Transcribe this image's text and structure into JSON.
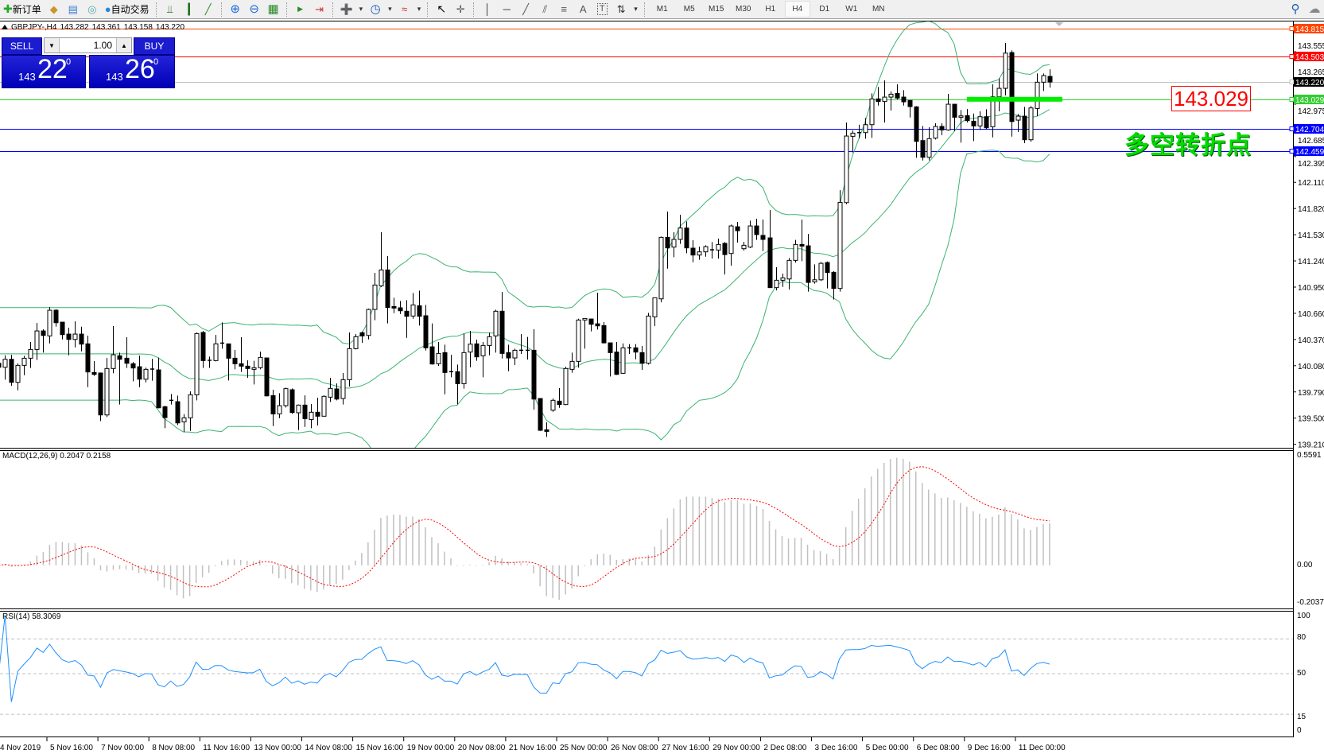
{
  "toolbar": {
    "new_order_label": "新订单",
    "auto_trading_label": "自动交易",
    "timeframes": [
      "M1",
      "M5",
      "M15",
      "M30",
      "H1",
      "H4",
      "D1",
      "W1",
      "MN"
    ],
    "active_timeframe": "H4"
  },
  "header": {
    "symbol": "GBPJPY-,H4",
    "open": "143.282",
    "high": "143.361",
    "low": "143.158",
    "close": "143.220"
  },
  "one_click": {
    "sell_label": "SELL",
    "buy_label": "BUY",
    "lot": "1.00",
    "sell_price": {
      "prefix": "143",
      "big": "22",
      "sup": "0"
    },
    "buy_price": {
      "prefix": "143",
      "big": "26",
      "sup": "0"
    }
  },
  "annotations": {
    "price_box": "143.029",
    "pivot_text": "多空转折点"
  },
  "indicators": {
    "macd_label": "MACD(12,26,9) 0.2047 0.2158",
    "rsi_label": "RSI(14) 58.3069",
    "macd_axis": [
      "0.5591",
      "0.00",
      "-0.2037"
    ],
    "rsi_axis": [
      "100",
      "80",
      "50",
      "15",
      "0"
    ],
    "rsi_levels": [
      80,
      50,
      15
    ]
  },
  "colors": {
    "bollinger": "#3cb371",
    "rsi": "#1e90ff",
    "macd_hist": "#c0c0c0",
    "macd_signal": "#ff0000",
    "pivot_segment": "#00ee00"
  },
  "chart_data": {
    "type": "candlestick",
    "symbol": "GBPJPY",
    "timeframe": "H4",
    "ylim": [
      139.15,
      143.87
    ],
    "price_ticks": [
      "143.555",
      "143.265",
      "142.975",
      "142.685",
      "142.395",
      "142.110",
      "141.820",
      "141.530",
      "141.240",
      "140.950",
      "140.660",
      "140.370",
      "140.080",
      "139.790",
      "139.500",
      "139.210"
    ],
    "time_labels": [
      "4 Nov 2019",
      "5 Nov 16:00",
      "7 Nov 00:00",
      "8 Nov 08:00",
      "11 Nov 16:00",
      "13 Nov 00:00",
      "14 Nov 08:00",
      "15 Nov 16:00",
      "19 Nov 00:00",
      "20 Nov 08:00",
      "21 Nov 16:00",
      "25 Nov 00:00",
      "26 Nov 08:00",
      "27 Nov 16:00",
      "29 Nov 00:00",
      "2 Dec 08:00",
      "3 Dec 16:00",
      "5 Dec 00:00",
      "6 Dec 08:00",
      "9 Dec 16:00",
      "11 Dec 00:00"
    ],
    "hlines": [
      {
        "price": 143.815,
        "label": "143.815",
        "color": "#ff4500",
        "label_bg": "#ff4500"
      },
      {
        "price": 143.503,
        "label": "143.503",
        "color": "#ff0000",
        "label_bg": "#ff0000"
      },
      {
        "price": 143.22,
        "label": "143.220",
        "color": "#c0c0c0",
        "label_bg": "#000000"
      },
      {
        "price": 143.029,
        "label": "143.029",
        "color": "#32cd32",
        "label_bg": "#32cd32"
      },
      {
        "price": 142.704,
        "label": "142.704",
        "color": "#0000ff",
        "label_bg": "#0000ff"
      },
      {
        "price": 142.459,
        "label": "142.459",
        "color": "#0000ff",
        "label_bg": "#0000ff"
      }
    ],
    "pivot_segment": {
      "price": 143.029,
      "from_bar": 152,
      "to_bar": 167
    },
    "candles_ohlc": [
      [
        140.107,
        140.137,
        140.019,
        140.063
      ],
      [
        140.063,
        140.195,
        139.925,
        140.151
      ],
      [
        140.151,
        140.201,
        139.858,
        139.896
      ],
      [
        139.896,
        140.107,
        139.808,
        140.084
      ],
      [
        140.084,
        140.19,
        139.975,
        140.163
      ],
      [
        140.163,
        140.342,
        140.055,
        140.26
      ],
      [
        140.26,
        140.553,
        140.143,
        140.465
      ],
      [
        140.465,
        140.483,
        140.225,
        140.415
      ],
      [
        140.41,
        140.729,
        140.327,
        140.694
      ],
      [
        140.694,
        140.706,
        140.512,
        140.556
      ],
      [
        140.562,
        140.562,
        140.371,
        140.424
      ],
      [
        140.43,
        140.501,
        140.195,
        140.371
      ],
      [
        140.371,
        140.571,
        140.283,
        140.43
      ],
      [
        140.43,
        140.512,
        140.239,
        140.319
      ],
      [
        140.322,
        140.413,
        139.843,
        140.011
      ],
      [
        140.005,
        140.131,
        139.967,
        139.984
      ],
      [
        139.999,
        140.005,
        139.468,
        139.535
      ],
      [
        139.535,
        140.166,
        139.512,
        140.049
      ],
      [
        140.049,
        140.518,
        139.996,
        140.201
      ],
      [
        140.19,
        140.225,
        139.65,
        140.151
      ],
      [
        140.163,
        140.395,
        140.055,
        140.107
      ],
      [
        140.102,
        140.122,
        139.908,
        140.055
      ],
      [
        140.069,
        140.192,
        139.843,
        139.931
      ],
      [
        139.931,
        140.058,
        139.896,
        140.04
      ],
      [
        140.043,
        140.157,
        139.914,
        140.031
      ],
      [
        140.034,
        140.17,
        139.609,
        139.614
      ],
      [
        139.626,
        139.638,
        139.388,
        139.506
      ],
      [
        139.697,
        139.767,
        139.65,
        139.688
      ],
      [
        139.682,
        139.749,
        139.424,
        139.447
      ],
      [
        139.459,
        139.544,
        139.344,
        139.503
      ],
      [
        139.503,
        139.796,
        139.359,
        139.758
      ],
      [
        139.758,
        140.448,
        139.697,
        140.436
      ],
      [
        140.448,
        140.465,
        140.055,
        140.137
      ],
      [
        140.137,
        140.181,
        140.055,
        140.14
      ],
      [
        140.137,
        140.421,
        140.128,
        140.322
      ],
      [
        140.33,
        140.559,
        140.269,
        140.319
      ],
      [
        140.322,
        140.322,
        139.917,
        140.163
      ],
      [
        140.163,
        140.254,
        140.04,
        140.102
      ],
      [
        140.102,
        140.395,
        140.011,
        140.075
      ],
      [
        140.075,
        140.14,
        139.946,
        140.049
      ],
      [
        140.04,
        140.134,
        139.873,
        140.058
      ],
      [
        140.058,
        140.236,
        140.04,
        140.172
      ],
      [
        140.166,
        140.17,
        139.74,
        139.746
      ],
      [
        139.749,
        139.814,
        139.412,
        139.547
      ],
      [
        139.547,
        139.776,
        139.5,
        139.638
      ],
      [
        139.638,
        139.837,
        139.617,
        139.826
      ],
      [
        139.814,
        139.829,
        139.547,
        139.562
      ],
      [
        139.559,
        139.65,
        139.368,
        139.644
      ],
      [
        139.644,
        139.752,
        139.403,
        139.494
      ],
      [
        139.485,
        139.656,
        139.388,
        139.565
      ],
      [
        139.565,
        139.726,
        139.418,
        139.521
      ],
      [
        139.521,
        139.752,
        139.521,
        139.741
      ],
      [
        139.732,
        139.946,
        139.679,
        139.829
      ],
      [
        139.823,
        139.884,
        139.697,
        139.711
      ],
      [
        139.717,
        139.999,
        139.65,
        139.925
      ],
      [
        139.925,
        140.448,
        139.849,
        140.269
      ],
      [
        140.269,
        140.43,
        140.26,
        140.401
      ],
      [
        140.445,
        140.46,
        140.333,
        140.41
      ],
      [
        140.415,
        140.712,
        140.371,
        140.703
      ],
      [
        140.703,
        141.108,
        140.583,
        140.973
      ],
      [
        140.964,
        141.557,
        140.952,
        141.14
      ],
      [
        141.14,
        141.293,
        140.548,
        140.724
      ],
      [
        140.735,
        140.832,
        140.662,
        140.718
      ],
      [
        140.721,
        140.797,
        140.653,
        140.688
      ],
      [
        140.683,
        140.806,
        140.389,
        140.627
      ],
      [
        140.63,
        140.885,
        140.6,
        140.753
      ],
      [
        140.744,
        140.911,
        140.524,
        140.627
      ],
      [
        140.633,
        140.753,
        140.248,
        140.278
      ],
      [
        140.289,
        140.548,
        140.093,
        140.099
      ],
      [
        140.102,
        140.342,
        140.078,
        140.216
      ],
      [
        140.225,
        140.313,
        139.764,
        140.005
      ],
      [
        140.014,
        140.201,
        139.952,
        140.005
      ],
      [
        140.014,
        140.093,
        139.653,
        139.881
      ],
      [
        139.881,
        140.436,
        139.826,
        140.225
      ],
      [
        140.231,
        140.465,
        140.063,
        140.319
      ],
      [
        140.322,
        140.369,
        140.134,
        140.178
      ],
      [
        140.19,
        140.342,
        139.952,
        140.304
      ],
      [
        140.304,
        140.445,
        140.195,
        140.401
      ],
      [
        140.41,
        140.7,
        140.225,
        140.683
      ],
      [
        140.683,
        140.897,
        140.16,
        140.216
      ],
      [
        140.225,
        140.313,
        140.019,
        140.166
      ],
      [
        140.166,
        140.269,
        140.087,
        140.251
      ],
      [
        140.251,
        140.43,
        140.21,
        140.239
      ],
      [
        140.251,
        140.398,
        140.148,
        140.239
      ],
      [
        140.251,
        140.483,
        139.594,
        139.711
      ],
      [
        139.717,
        139.717,
        139.359,
        139.365
      ],
      [
        139.371,
        139.453,
        139.292,
        139.353
      ],
      [
        139.588,
        139.717,
        139.57,
        139.697
      ],
      [
        139.688,
        139.832,
        139.614,
        139.65
      ],
      [
        139.65,
        140.069,
        139.644,
        140.049
      ],
      [
        140.04,
        140.225,
        140.002,
        140.128
      ],
      [
        140.128,
        140.6,
        140.058,
        140.586
      ],
      [
        140.586,
        140.603,
        140.269,
        140.603
      ],
      [
        140.597,
        140.6,
        140.46,
        140.539
      ],
      [
        140.544,
        140.888,
        140.48,
        140.521
      ],
      [
        140.524,
        140.562,
        140.327,
        140.333
      ],
      [
        140.333,
        140.333,
        139.961,
        140.225
      ],
      [
        140.231,
        140.342,
        139.978,
        139.984
      ],
      [
        139.996,
        140.327,
        139.99,
        140.278
      ],
      [
        140.275,
        140.319,
        140.21,
        140.278
      ],
      [
        140.278,
        140.319,
        140.151,
        140.231
      ],
      [
        140.225,
        140.298,
        140.034,
        140.107
      ],
      [
        140.107,
        140.665,
        140.093,
        140.63
      ],
      [
        140.621,
        140.832,
        140.518,
        140.832
      ],
      [
        140.82,
        141.51,
        140.782,
        141.501
      ],
      [
        141.501,
        141.786,
        141.155,
        141.384
      ],
      [
        141.393,
        141.557,
        141.281,
        141.478
      ],
      [
        141.478,
        141.751,
        141.428,
        141.604
      ],
      [
        141.604,
        141.677,
        141.325,
        141.384
      ],
      [
        141.381,
        141.469,
        141.225,
        141.305
      ],
      [
        141.305,
        141.398,
        141.252,
        141.34
      ],
      [
        141.34,
        141.413,
        141.287,
        141.398
      ],
      [
        141.36,
        141.448,
        141.266,
        141.363
      ],
      [
        141.36,
        141.487,
        141.266,
        141.422
      ],
      [
        141.434,
        141.448,
        141.09,
        141.31
      ],
      [
        141.322,
        141.642,
        141.187,
        141.627
      ],
      [
        141.618,
        141.671,
        141.443,
        141.574
      ],
      [
        141.375,
        141.451,
        141.355,
        141.413
      ],
      [
        141.393,
        141.686,
        141.381,
        141.627
      ],
      [
        141.627,
        141.707,
        141.472,
        141.531
      ],
      [
        141.522,
        141.698,
        141.349,
        141.478
      ],
      [
        141.495,
        141.803,
        140.944,
        140.944
      ],
      [
        140.944,
        141.17,
        140.914,
        141.026
      ],
      [
        141.026,
        141.099,
        140.952,
        141.052
      ],
      [
        141.04,
        141.272,
        140.923,
        141.246
      ],
      [
        141.246,
        141.472,
        141.222,
        141.422
      ],
      [
        141.422,
        141.698,
        141.237,
        141.404
      ],
      [
        141.407,
        141.539,
        140.9,
        141.002
      ],
      [
        141.008,
        141.202,
        140.988,
        141.031
      ],
      [
        141.031,
        141.228,
        141.017,
        141.213
      ],
      [
        141.222,
        141.234,
        140.935,
        141.111
      ],
      [
        141.114,
        141.126,
        140.812,
        140.935
      ],
      [
        140.935,
        142.023,
        140.9,
        141.888
      ],
      [
        141.885,
        142.772,
        141.868,
        142.622
      ],
      [
        142.619,
        142.684,
        142.44,
        142.654
      ],
      [
        142.66,
        142.748,
        142.596,
        142.654
      ],
      [
        142.66,
        142.822,
        142.593,
        142.748
      ],
      [
        142.748,
        143.094,
        142.602,
        143.033
      ],
      [
        143.033,
        143.165,
        142.959,
        143.004
      ],
      [
        143.004,
        143.238,
        142.772,
        143.053
      ],
      [
        143.053,
        143.115,
        142.904,
        143.085
      ],
      [
        143.094,
        143.194,
        143.027,
        143.042
      ],
      [
        143.053,
        143.13,
        142.959,
        143.001
      ],
      [
        143.016,
        143.016,
        142.827,
        142.948
      ],
      [
        142.945,
        142.954,
        142.381,
        142.563
      ],
      [
        142.572,
        142.734,
        142.352,
        142.387
      ],
      [
        142.387,
        142.719,
        142.352,
        142.593
      ],
      [
        142.599,
        142.763,
        142.584,
        142.728
      ],
      [
        142.728,
        142.763,
        142.631,
        142.69
      ],
      [
        142.69,
        143.089,
        142.681,
        142.974
      ],
      [
        142.974,
        142.974,
        142.675,
        142.83
      ],
      [
        142.83,
        142.91,
        142.549,
        142.845
      ],
      [
        142.848,
        142.921,
        142.772,
        142.792
      ],
      [
        142.786,
        142.871,
        142.566,
        142.734
      ],
      [
        142.734,
        142.895,
        142.69,
        142.836
      ],
      [
        142.836,
        142.918,
        142.698,
        142.713
      ],
      [
        142.725,
        143.194,
        142.607,
        143.056
      ],
      [
        143.056,
        143.262,
        142.895,
        143.15
      ],
      [
        143.15,
        143.652,
        143.071,
        143.54
      ],
      [
        143.546,
        143.57,
        142.616,
        142.783
      ],
      [
        142.798,
        142.866,
        142.666,
        142.842
      ],
      [
        142.842,
        142.945,
        142.543,
        142.581
      ],
      [
        142.581,
        142.954,
        142.558,
        142.933
      ],
      [
        142.927,
        143.315,
        142.842,
        143.218
      ],
      [
        143.218,
        143.315,
        143.121,
        143.291
      ],
      [
        143.282,
        143.361,
        143.158,
        143.22
      ]
    ]
  }
}
